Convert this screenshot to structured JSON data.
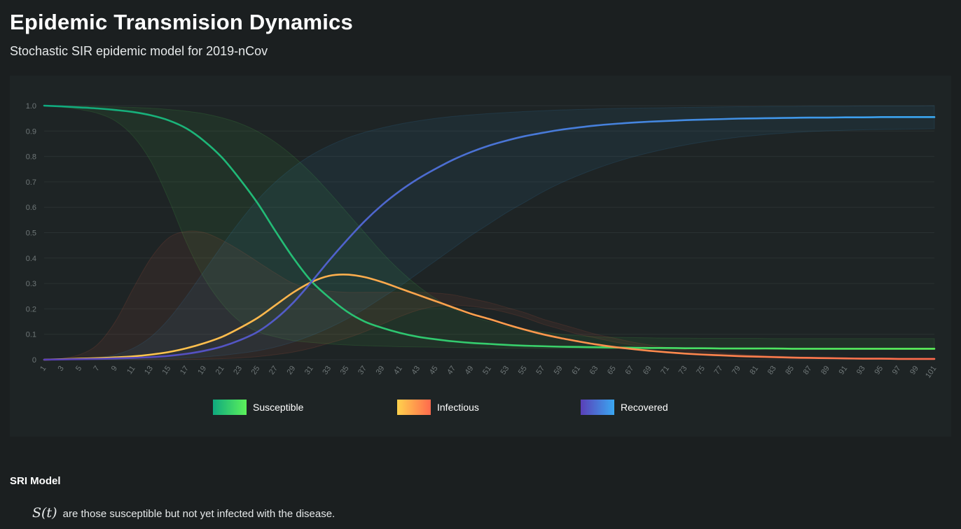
{
  "page": {
    "title": "Epidemic Transmision Dynamics",
    "subtitle": "Stochastic SIR epidemic model for 2019-nCov"
  },
  "section": {
    "heading": "SRI Model",
    "line1_math": "S(t)",
    "line1_text": "are those susceptible but not yet infected with the disease."
  },
  "colors": {
    "background": "#1b1f20",
    "panel": "#1e2425",
    "grid": "#2a3132",
    "tick_text": "#6f7778"
  },
  "chart_data": {
    "type": "line",
    "x": [
      1,
      3,
      5,
      7,
      9,
      11,
      13,
      15,
      17,
      19,
      21,
      23,
      25,
      27,
      29,
      31,
      33,
      35,
      37,
      39,
      41,
      43,
      45,
      47,
      49,
      51,
      53,
      55,
      57,
      59,
      61,
      63,
      65,
      67,
      69,
      71,
      73,
      75,
      77,
      79,
      81,
      83,
      85,
      87,
      89,
      91,
      93,
      95,
      97,
      99,
      101
    ],
    "ylim": [
      0,
      1.0
    ],
    "y_ticks": [
      "1.0",
      "0.9",
      "0.8",
      "0.7",
      "0.6",
      "0.5",
      "0.4",
      "0.3",
      "0.2",
      "0.1",
      "0"
    ],
    "y_tick_values": [
      1.0,
      0.9,
      0.8,
      0.7,
      0.6,
      0.5,
      0.4,
      0.3,
      0.2,
      0.1,
      0
    ],
    "x_tick_labels": [
      "1",
      "3",
      "5",
      "7",
      "9",
      "11",
      "13",
      "15",
      "17",
      "19",
      "21",
      "23",
      "25",
      "27",
      "29",
      "31",
      "33",
      "35",
      "37",
      "39",
      "41",
      "43",
      "45",
      "47",
      "49",
      "51",
      "53",
      "55",
      "57",
      "59",
      "61",
      "63",
      "65",
      "67",
      "69",
      "71",
      "73",
      "75",
      "77",
      "79",
      "81",
      "83",
      "85",
      "87",
      "89",
      "91",
      "93",
      "95",
      "97",
      "99",
      "101"
    ],
    "grid": true,
    "legend_position": "bottom",
    "series": [
      {
        "name": "Susceptible",
        "gradient": [
          "#0fa97f",
          "#5cf25a"
        ],
        "values": [
          1.0,
          0.997,
          0.993,
          0.989,
          0.983,
          0.975,
          0.962,
          0.942,
          0.91,
          0.86,
          0.795,
          0.71,
          0.615,
          0.505,
          0.4,
          0.31,
          0.245,
          0.19,
          0.15,
          0.125,
          0.105,
          0.09,
          0.08,
          0.072,
          0.066,
          0.062,
          0.058,
          0.055,
          0.053,
          0.051,
          0.05,
          0.049,
          0.048,
          0.047,
          0.046,
          0.046,
          0.045,
          0.045,
          0.044,
          0.044,
          0.044,
          0.044,
          0.043,
          0.043,
          0.043,
          0.043,
          0.043,
          0.043,
          0.043,
          0.043,
          0.043
        ],
        "band_upper": [
          1.0,
          0.999,
          0.998,
          0.997,
          0.995,
          0.993,
          0.99,
          0.985,
          0.978,
          0.968,
          0.952,
          0.93,
          0.898,
          0.855,
          0.8,
          0.735,
          0.66,
          0.58,
          0.5,
          0.42,
          0.35,
          0.29,
          0.24,
          0.2,
          0.17,
          0.15,
          0.13,
          0.12,
          0.11,
          0.1,
          0.095,
          0.09,
          0.088,
          0.087,
          0.086,
          0.085,
          0.085,
          0.084,
          0.084,
          0.084,
          0.084,
          0.083,
          0.083,
          0.083,
          0.083,
          0.083,
          0.083,
          0.083,
          0.083,
          0.083,
          0.083
        ],
        "band_lower": [
          1.0,
          0.994,
          0.985,
          0.97,
          0.94,
          0.88,
          0.78,
          0.63,
          0.46,
          0.32,
          0.22,
          0.15,
          0.11,
          0.09,
          0.075,
          0.068,
          0.062,
          0.058,
          0.055,
          0.053,
          0.051,
          0.05,
          0.049,
          0.048,
          0.047,
          0.046,
          0.045,
          0.045,
          0.044,
          0.044,
          0.044,
          0.043,
          0.043,
          0.043,
          0.042,
          0.042,
          0.042,
          0.042,
          0.042,
          0.041,
          0.041,
          0.041,
          0.041,
          0.041,
          0.041,
          0.041,
          0.041,
          0.041,
          0.041,
          0.041,
          0.041
        ]
      },
      {
        "name": "Infectious",
        "gradient": [
          "#ffd24d",
          "#ff6a4d"
        ],
        "values": [
          0.0,
          0.002,
          0.004,
          0.006,
          0.009,
          0.013,
          0.02,
          0.03,
          0.045,
          0.065,
          0.09,
          0.125,
          0.165,
          0.215,
          0.265,
          0.305,
          0.33,
          0.335,
          0.325,
          0.305,
          0.28,
          0.255,
          0.23,
          0.205,
          0.18,
          0.16,
          0.138,
          0.118,
          0.1,
          0.085,
          0.072,
          0.06,
          0.05,
          0.042,
          0.035,
          0.029,
          0.024,
          0.02,
          0.017,
          0.014,
          0.012,
          0.01,
          0.008,
          0.007,
          0.006,
          0.005,
          0.004,
          0.004,
          0.003,
          0.003,
          0.003
        ],
        "band_upper": [
          0.0,
          0.005,
          0.02,
          0.06,
          0.15,
          0.28,
          0.4,
          0.48,
          0.505,
          0.5,
          0.47,
          0.43,
          0.385,
          0.34,
          0.3,
          0.28,
          0.27,
          0.265,
          0.265,
          0.265,
          0.265,
          0.265,
          0.262,
          0.255,
          0.24,
          0.225,
          0.205,
          0.185,
          0.16,
          0.14,
          0.12,
          0.1,
          0.085,
          0.07,
          0.058,
          0.048,
          0.04,
          0.033,
          0.027,
          0.022,
          0.018,
          0.015,
          0.012,
          0.01,
          0.008,
          0.007,
          0.006,
          0.005,
          0.004,
          0.004,
          0.003
        ],
        "band_lower": [
          0.0,
          0.0,
          0.0,
          0.0,
          0.0,
          0.0,
          0.0,
          0.0,
          0.001,
          0.002,
          0.004,
          0.007,
          0.012,
          0.02,
          0.03,
          0.045,
          0.065,
          0.085,
          0.11,
          0.14,
          0.17,
          0.195,
          0.21,
          0.215,
          0.21,
          0.2,
          0.185,
          0.165,
          0.14,
          0.12,
          0.1,
          0.085,
          0.07,
          0.058,
          0.048,
          0.04,
          0.033,
          0.027,
          0.022,
          0.018,
          0.015,
          0.012,
          0.01,
          0.008,
          0.007,
          0.006,
          0.005,
          0.004,
          0.004,
          0.003,
          0.003
        ]
      },
      {
        "name": "Recovered",
        "gradient": [
          "#5a3fb8",
          "#3aa8f2"
        ],
        "values": [
          0.0,
          0.001,
          0.002,
          0.003,
          0.005,
          0.007,
          0.01,
          0.015,
          0.023,
          0.035,
          0.052,
          0.077,
          0.11,
          0.16,
          0.225,
          0.305,
          0.39,
          0.47,
          0.545,
          0.61,
          0.665,
          0.712,
          0.752,
          0.788,
          0.818,
          0.843,
          0.863,
          0.88,
          0.893,
          0.905,
          0.914,
          0.922,
          0.928,
          0.933,
          0.937,
          0.94,
          0.943,
          0.945,
          0.947,
          0.949,
          0.95,
          0.951,
          0.952,
          0.953,
          0.953,
          0.954,
          0.954,
          0.955,
          0.955,
          0.955,
          0.955
        ],
        "band_upper": [
          0.0,
          0.001,
          0.003,
          0.008,
          0.02,
          0.045,
          0.09,
          0.16,
          0.25,
          0.35,
          0.45,
          0.545,
          0.63,
          0.7,
          0.758,
          0.805,
          0.842,
          0.872,
          0.895,
          0.913,
          0.928,
          0.94,
          0.95,
          0.958,
          0.964,
          0.969,
          0.973,
          0.977,
          0.98,
          0.983,
          0.985,
          0.987,
          0.989,
          0.99,
          0.991,
          0.992,
          0.993,
          0.994,
          0.995,
          0.996,
          0.996,
          0.997,
          0.997,
          0.998,
          0.998,
          0.998,
          0.999,
          0.999,
          0.999,
          0.999,
          1.0
        ],
        "band_lower": [
          0.0,
          0.0,
          0.0,
          0.0,
          0.0,
          0.001,
          0.002,
          0.004,
          0.007,
          0.011,
          0.017,
          0.025,
          0.035,
          0.05,
          0.07,
          0.095,
          0.125,
          0.16,
          0.2,
          0.245,
          0.29,
          0.34,
          0.39,
          0.44,
          0.49,
          0.535,
          0.58,
          0.62,
          0.66,
          0.695,
          0.725,
          0.752,
          0.776,
          0.797,
          0.815,
          0.831,
          0.845,
          0.857,
          0.867,
          0.876,
          0.883,
          0.889,
          0.894,
          0.898,
          0.901,
          0.903,
          0.905,
          0.906,
          0.907,
          0.908,
          0.909
        ]
      }
    ]
  }
}
